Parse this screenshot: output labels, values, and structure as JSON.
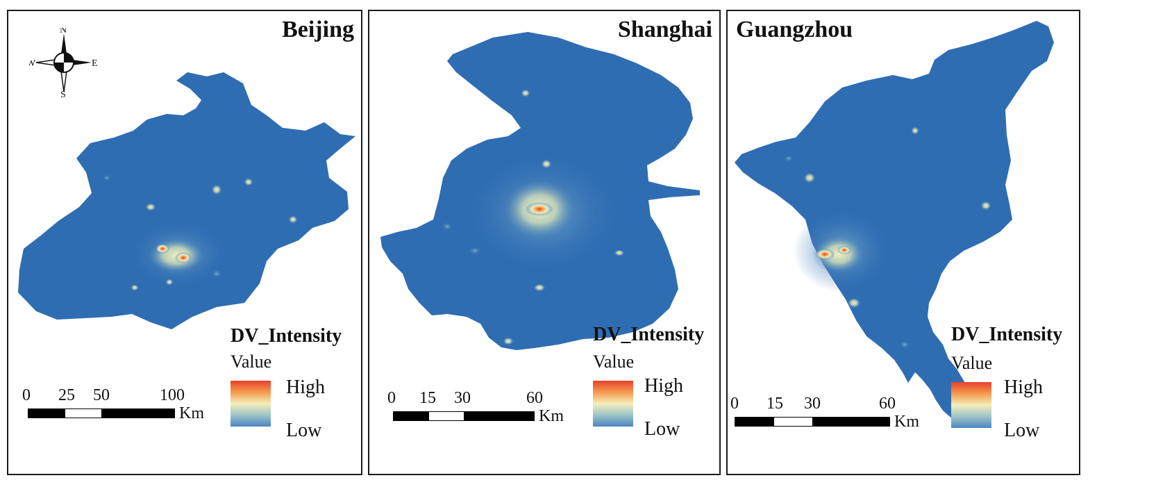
{
  "panels": [
    {
      "city": "Beijing",
      "legend": {
        "title": "DV_Intensity",
        "subtitle": "Value",
        "high": "High",
        "low": "Low"
      },
      "scale": {
        "ticks": [
          "0",
          "25",
          "50",
          "100"
        ],
        "unit": "Km"
      }
    },
    {
      "city": "Shanghai",
      "legend": {
        "title": "DV_Intensity",
        "subtitle": "Value",
        "high": "High",
        "low": "Low"
      },
      "scale": {
        "ticks": [
          "0",
          "15",
          "30",
          "60"
        ],
        "unit": "Km"
      }
    },
    {
      "city": "Guangzhou",
      "legend": {
        "title": "DV_Intensity",
        "subtitle": "Value",
        "high": "High",
        "low": "Low"
      },
      "scale": {
        "ticks": [
          "0",
          "15",
          "30",
          "60"
        ],
        "unit": "Km"
      }
    }
  ],
  "compass": {
    "north": "N",
    "south": "S",
    "east": "E",
    "west": "W"
  },
  "colors": {
    "base": "#2f6db3",
    "high": "#e8412b",
    "mid": "#f5eebb",
    "low": "#4a86c1"
  }
}
